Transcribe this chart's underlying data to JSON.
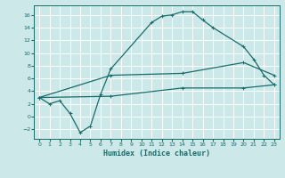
{
  "xlabel": "Humidex (Indice chaleur)",
  "background_color": "#cce8e8",
  "grid_color": "#ffffff",
  "line_color": "#1a6b6b",
  "xlim": [
    -0.5,
    23.5
  ],
  "ylim": [
    -3.5,
    17.5
  ],
  "xticks": [
    0,
    1,
    2,
    3,
    4,
    5,
    6,
    7,
    8,
    9,
    10,
    11,
    12,
    13,
    14,
    15,
    16,
    17,
    18,
    19,
    20,
    21,
    22,
    23
  ],
  "yticks": [
    -2,
    0,
    2,
    4,
    6,
    8,
    10,
    12,
    14,
    16
  ],
  "line1_x": [
    0,
    1,
    2,
    3,
    4,
    5,
    6,
    7,
    11,
    12,
    13,
    14,
    15,
    16,
    17,
    20,
    21,
    22,
    23
  ],
  "line1_y": [
    3,
    2,
    2.5,
    0.5,
    -2.5,
    -1.5,
    3.5,
    7.5,
    14.8,
    15.8,
    16.0,
    16.5,
    16.5,
    15.2,
    14.0,
    11.0,
    9.0,
    6.5,
    5.0
  ],
  "line2_x": [
    0,
    7,
    14,
    20,
    23
  ],
  "line2_y": [
    3,
    6.5,
    6.8,
    8.5,
    6.5
  ],
  "line3_x": [
    0,
    7,
    14,
    20,
    23
  ],
  "line3_y": [
    3,
    3.2,
    4.5,
    4.5,
    5.0
  ],
  "marker": "+"
}
